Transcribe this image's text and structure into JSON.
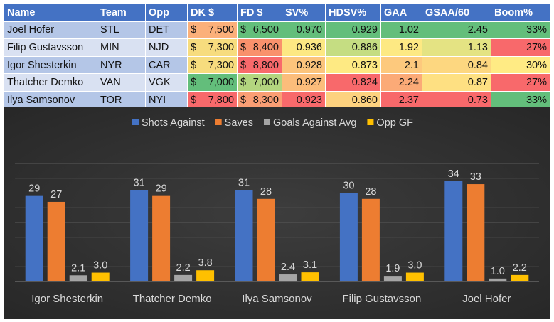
{
  "table": {
    "headers": [
      "Name",
      "Team",
      "Opp",
      "DK $",
      "FD $",
      "SV%",
      "HDSV%",
      "GAA",
      "GSAA/60",
      "Boom%"
    ],
    "rows": [
      {
        "name": "Joel Hofer",
        "team": "STL",
        "opp": "DET",
        "dk": "7,500",
        "fd": "6,500",
        "sv": "0.970",
        "hdsv": "0.929",
        "gaa": "1.02",
        "gsaa": "2.45",
        "boom": "33%"
      },
      {
        "name": "Filip Gustavsson",
        "team": "MIN",
        "opp": "NJD",
        "dk": "7,300",
        "fd": "8,400",
        "sv": "0.936",
        "hdsv": "0.886",
        "gaa": "1.92",
        "gsaa": "1.13",
        "boom": "27%"
      },
      {
        "name": "Igor Shesterkin",
        "team": "NYR",
        "opp": "CAR",
        "dk": "7,300",
        "fd": "8,800",
        "sv": "0.928",
        "hdsv": "0.873",
        "gaa": "2.1",
        "gsaa": "0.84",
        "boom": "30%"
      },
      {
        "name": "Thatcher Demko",
        "team": "VAN",
        "opp": "VGK",
        "dk": "7,000",
        "fd": "7,000",
        "sv": "0.927",
        "hdsv": "0.824",
        "gaa": "2.24",
        "gsaa": "0.87",
        "boom": "27%"
      },
      {
        "name": "Ilya Samsonov",
        "team": "TOR",
        "opp": "NYI",
        "dk": "7,800",
        "fd": "8,300",
        "sv": "0.923",
        "hdsv": "0.860",
        "gaa": "2.37",
        "gsaa": "0.73",
        "boom": "33%"
      }
    ],
    "currency_symbol": "$",
    "cell_colors": {
      "dk": [
        "#fbb07a",
        "#f7dc7e",
        "#f7dc7e",
        "#63be7b",
        "#f8696b"
      ],
      "fd": [
        "#63be7b",
        "#f9916c",
        "#f8696b",
        "#b3d57f",
        "#fa9e74"
      ],
      "sv": [
        "#63be7b",
        "#fde883",
        "#fcc47c",
        "#fcbd7b",
        "#f8696b"
      ],
      "hdsv": [
        "#63be7b",
        "#c5dd82",
        "#feea83",
        "#f8696b",
        "#fdd27f"
      ],
      "gaa": [
        "#63be7b",
        "#fde983",
        "#fdc97d",
        "#fbaa77",
        "#f8696b"
      ],
      "gsaa": [
        "#63be7b",
        "#e4e383",
        "#fdd780",
        "#fee082",
        "#f8696b"
      ],
      "boom": [
        "#63be7b",
        "#f8696b",
        "#ffeb84",
        "#f8696b",
        "#63be7b"
      ]
    }
  },
  "colors": {
    "chart_bg": "#3d3d3d",
    "chart_bg_edge": "#262626",
    "shots": "#4472c4",
    "saves": "#ed7d31",
    "gaa": "#a5a5a5",
    "oppgf": "#ffc000"
  },
  "chart_data": {
    "type": "bar",
    "title": "",
    "xlabel": "",
    "ylabel": "",
    "ylim": [
      0,
      40
    ],
    "grid": true,
    "legend": "top",
    "categories": [
      "Igor Shesterkin",
      "Thatcher Demko",
      "Ilya Samsonov",
      "Filip Gustavsson",
      "Joel Hofer"
    ],
    "series": [
      {
        "name": "Shots Against",
        "values": [
          29,
          31,
          31,
          30,
          34
        ],
        "labels": [
          "29",
          "31",
          "31",
          "30",
          "34"
        ]
      },
      {
        "name": "Saves",
        "values": [
          27,
          29,
          28,
          28,
          33
        ],
        "labels": [
          "27",
          "29",
          "28",
          "28",
          "33"
        ]
      },
      {
        "name": "Goals Against Avg",
        "values": [
          2.1,
          2.2,
          2.4,
          1.9,
          1.0
        ],
        "labels": [
          "2.1",
          "2.2",
          "2.4",
          "1.9",
          "1.0"
        ]
      },
      {
        "name": "Opp GF",
        "values": [
          3.0,
          3.8,
          3.1,
          3.0,
          2.2
        ],
        "labels": [
          "3.0",
          "3.8",
          "3.1",
          "3.0",
          "2.2"
        ]
      }
    ]
  }
}
